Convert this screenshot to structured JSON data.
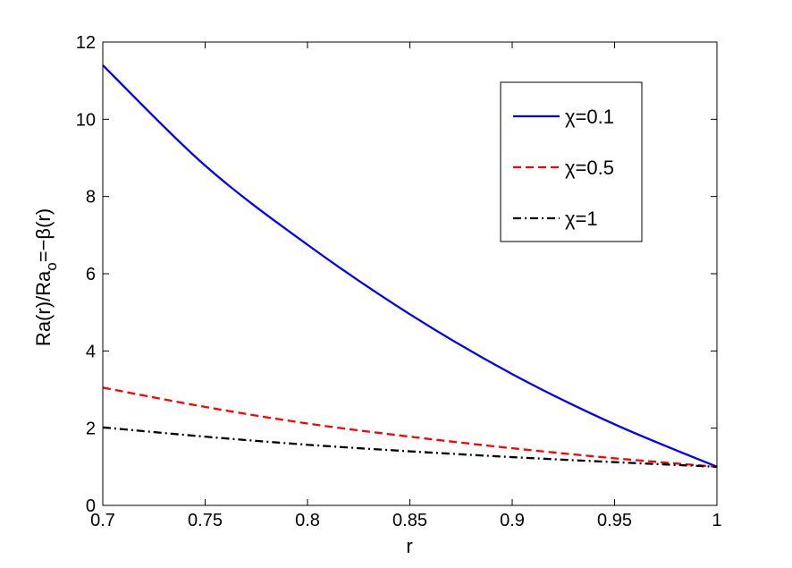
{
  "chart_data": {
    "type": "line",
    "xlabel": "r",
    "ylabel": {
      "main": "Ra(r)/Ra",
      "subscript": "o",
      "suffix": "=−β(r)"
    },
    "xlim": [
      0.7,
      1.0
    ],
    "ylim": [
      0,
      12
    ],
    "xticks": [
      "0.7",
      "0.75",
      "0.8",
      "0.85",
      "0.9",
      "0.95",
      "1"
    ],
    "yticks": [
      "0",
      "2",
      "4",
      "6",
      "8",
      "10",
      "12"
    ],
    "grid": false,
    "legend_position": "top-right",
    "series": [
      {
        "name": "χ=0.1",
        "color": "#0000ff",
        "style": "solid",
        "x": [
          0.7,
          0.75,
          0.8,
          0.85,
          0.9,
          0.95,
          1.0
        ],
        "y": [
          11.4,
          8.8,
          6.75,
          4.95,
          3.4,
          2.1,
          1.0
        ]
      },
      {
        "name": "χ=0.5",
        "color": "#ff0000",
        "style": "dashed",
        "x": [
          0.7,
          0.75,
          0.8,
          0.85,
          0.9,
          0.95,
          1.0
        ],
        "y": [
          3.05,
          2.55,
          2.12,
          1.78,
          1.48,
          1.22,
          1.0
        ]
      },
      {
        "name": "χ=1",
        "color": "#000000",
        "style": "dashdot",
        "x": [
          0.7,
          0.75,
          0.8,
          0.85,
          0.9,
          0.95,
          1.0
        ],
        "y": [
          2.02,
          1.78,
          1.57,
          1.4,
          1.25,
          1.12,
          1.0
        ]
      }
    ]
  }
}
